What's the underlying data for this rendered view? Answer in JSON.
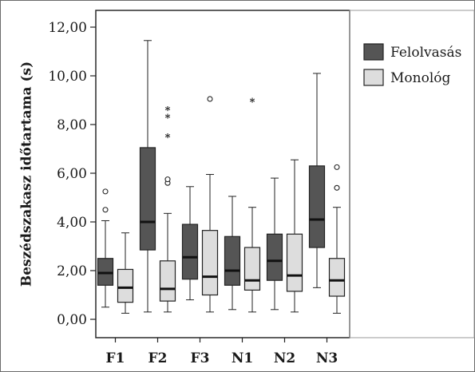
{
  "chart_data": {
    "type": "boxplot",
    "ylabel": "Beszédszakasz időtartama (s)",
    "xlabel": "",
    "ylim": [
      0,
      12
    ],
    "yticks": [
      "0,00",
      "2,00",
      "4,00",
      "6,00",
      "8,00",
      "10,00",
      "12,00"
    ],
    "categories": [
      "F1",
      "F2",
      "F3",
      "N1",
      "N2",
      "N3"
    ],
    "legend_position": "right",
    "grid": false,
    "series": [
      {
        "name": "Felolvasás",
        "color": "#555555",
        "boxes": [
          {
            "min": 0.5,
            "q1": 1.4,
            "median": 1.9,
            "q3": 2.5,
            "max": 4.05,
            "outliers": [
              4.5,
              5.25
            ],
            "extremes": []
          },
          {
            "min": 0.3,
            "q1": 2.85,
            "median": 4.0,
            "q3": 7.05,
            "max": 11.45,
            "outliers": [],
            "extremes": []
          },
          {
            "min": 0.8,
            "q1": 1.65,
            "median": 2.55,
            "q3": 3.9,
            "max": 5.45,
            "outliers": [],
            "extremes": []
          },
          {
            "min": 0.4,
            "q1": 1.4,
            "median": 2.0,
            "q3": 3.4,
            "max": 5.05,
            "outliers": [],
            "extremes": []
          },
          {
            "min": 0.4,
            "q1": 1.6,
            "median": 2.4,
            "q3": 3.5,
            "max": 5.8,
            "outliers": [],
            "extremes": []
          },
          {
            "min": 1.3,
            "q1": 2.95,
            "median": 4.1,
            "q3": 6.3,
            "max": 10.1,
            "outliers": [],
            "extremes": []
          }
        ]
      },
      {
        "name": "Monológ",
        "color": "#dddddd",
        "boxes": [
          {
            "min": 0.25,
            "q1": 0.7,
            "median": 1.3,
            "q3": 2.05,
            "max": 3.55,
            "outliers": [],
            "extremes": []
          },
          {
            "min": 0.3,
            "q1": 0.75,
            "median": 1.25,
            "q3": 2.4,
            "max": 4.35,
            "outliers": [
              5.6,
              5.75
            ],
            "extremes": [
              7.5,
              8.3,
              8.6
            ]
          },
          {
            "min": 0.3,
            "q1": 1.0,
            "median": 1.75,
            "q3": 3.65,
            "max": 5.95,
            "outliers": [
              9.05
            ],
            "extremes": []
          },
          {
            "min": 0.3,
            "q1": 1.2,
            "median": 1.6,
            "q3": 2.95,
            "max": 4.6,
            "outliers": [],
            "extremes": [
              8.95
            ]
          },
          {
            "min": 0.3,
            "q1": 1.15,
            "median": 1.8,
            "q3": 3.5,
            "max": 6.55,
            "outliers": [],
            "extremes": []
          },
          {
            "min": 0.25,
            "q1": 0.95,
            "median": 1.6,
            "q3": 2.5,
            "max": 4.6,
            "outliers": [
              5.4,
              6.25
            ],
            "extremes": []
          }
        ]
      }
    ]
  }
}
